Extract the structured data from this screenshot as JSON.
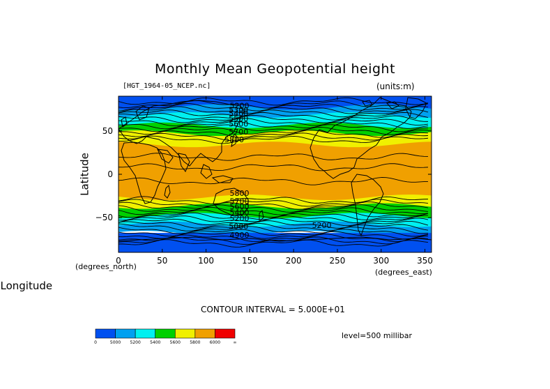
{
  "chart_data": {
    "type": "heatmap",
    "title": "Monthly Mean Geopotential height",
    "file_label": "[HGT_1964-05_NCEP.nc]",
    "units_label": "(units:m)",
    "xlabel": "Longitude",
    "ylabel": "Latitude",
    "x_unit_label": "(degrees_east)",
    "y_unit_label": "(degrees_north)",
    "xlim": [
      0,
      357.5
    ],
    "ylim": [
      -90,
      90
    ],
    "x_ticks": [
      0,
      50,
      100,
      150,
      200,
      250,
      300,
      350
    ],
    "y_ticks": [
      -50,
      0,
      50
    ],
    "contour_interval_text": "CONTOUR INTERVAL = 5.000E+01",
    "level_text": "level=500 millibar",
    "contour_labels": [
      {
        "text": "5200",
        "lon": 127,
        "lat": 76
      },
      {
        "text": "5300",
        "lon": 126,
        "lat": 71
      },
      {
        "text": "5400",
        "lon": 126,
        "lat": 67
      },
      {
        "text": "5500",
        "lon": 126,
        "lat": 61
      },
      {
        "text": "5600",
        "lon": 126,
        "lat": 55
      },
      {
        "text": "5700",
        "lon": 126,
        "lat": 46
      },
      {
        "text": "5800",
        "lon": 121,
        "lat": 37
      },
      {
        "text": "5800",
        "lon": 127,
        "lat": -25
      },
      {
        "text": "5700",
        "lon": 127,
        "lat": -34
      },
      {
        "text": "5600",
        "lon": 127,
        "lat": -40
      },
      {
        "text": "5400",
        "lon": 127,
        "lat": -47
      },
      {
        "text": "5200",
        "lon": 127,
        "lat": -54
      },
      {
        "text": "5000",
        "lon": 126,
        "lat": -63
      },
      {
        "text": "4900",
        "lon": 127,
        "lat": -73
      },
      {
        "text": "5200",
        "lon": 221,
        "lat": -62
      }
    ],
    "colorbar": {
      "colors": [
        "#0050f0",
        "#00a0f0",
        "#00f0f0",
        "#00d000",
        "#f0f000",
        "#f0a000",
        "#f00000"
      ],
      "tick_labels": [
        "0",
        "5000",
        "5200",
        "5400",
        "5600",
        "5800",
        "6000",
        "∞"
      ]
    }
  }
}
